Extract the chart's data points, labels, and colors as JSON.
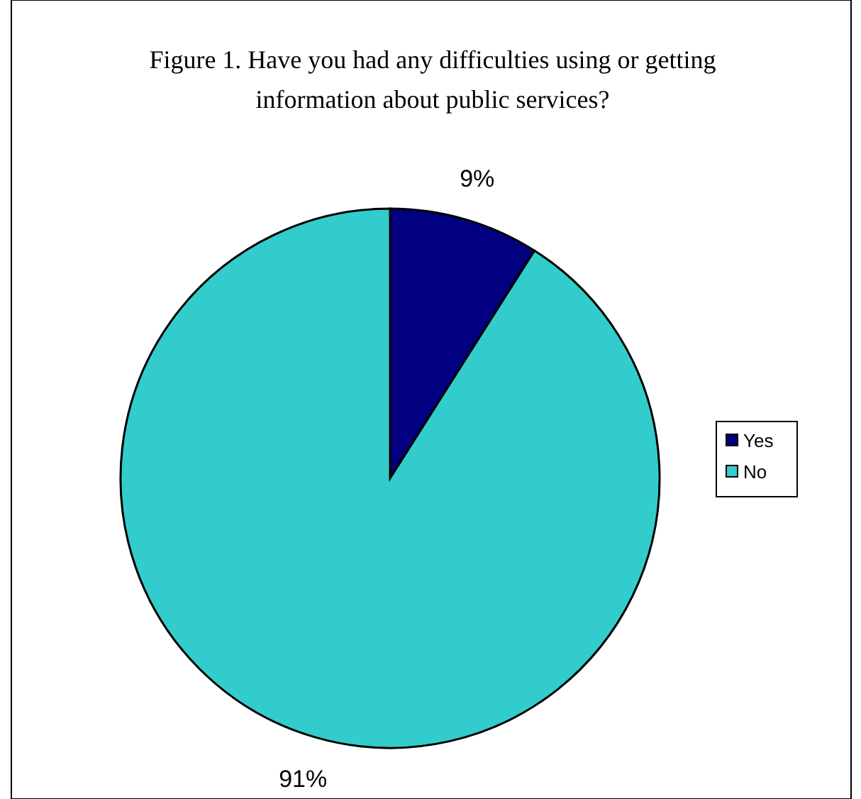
{
  "chart_data": {
    "type": "pie",
    "title": "Figure 1. Have you had any difficulties using or getting information about public services?",
    "categories": [
      "Yes",
      "No"
    ],
    "values": [
      9,
      91
    ],
    "colors": [
      "#000080",
      "#33cccc"
    ],
    "value_labels": [
      "9%",
      "91%"
    ],
    "legend": "right"
  }
}
